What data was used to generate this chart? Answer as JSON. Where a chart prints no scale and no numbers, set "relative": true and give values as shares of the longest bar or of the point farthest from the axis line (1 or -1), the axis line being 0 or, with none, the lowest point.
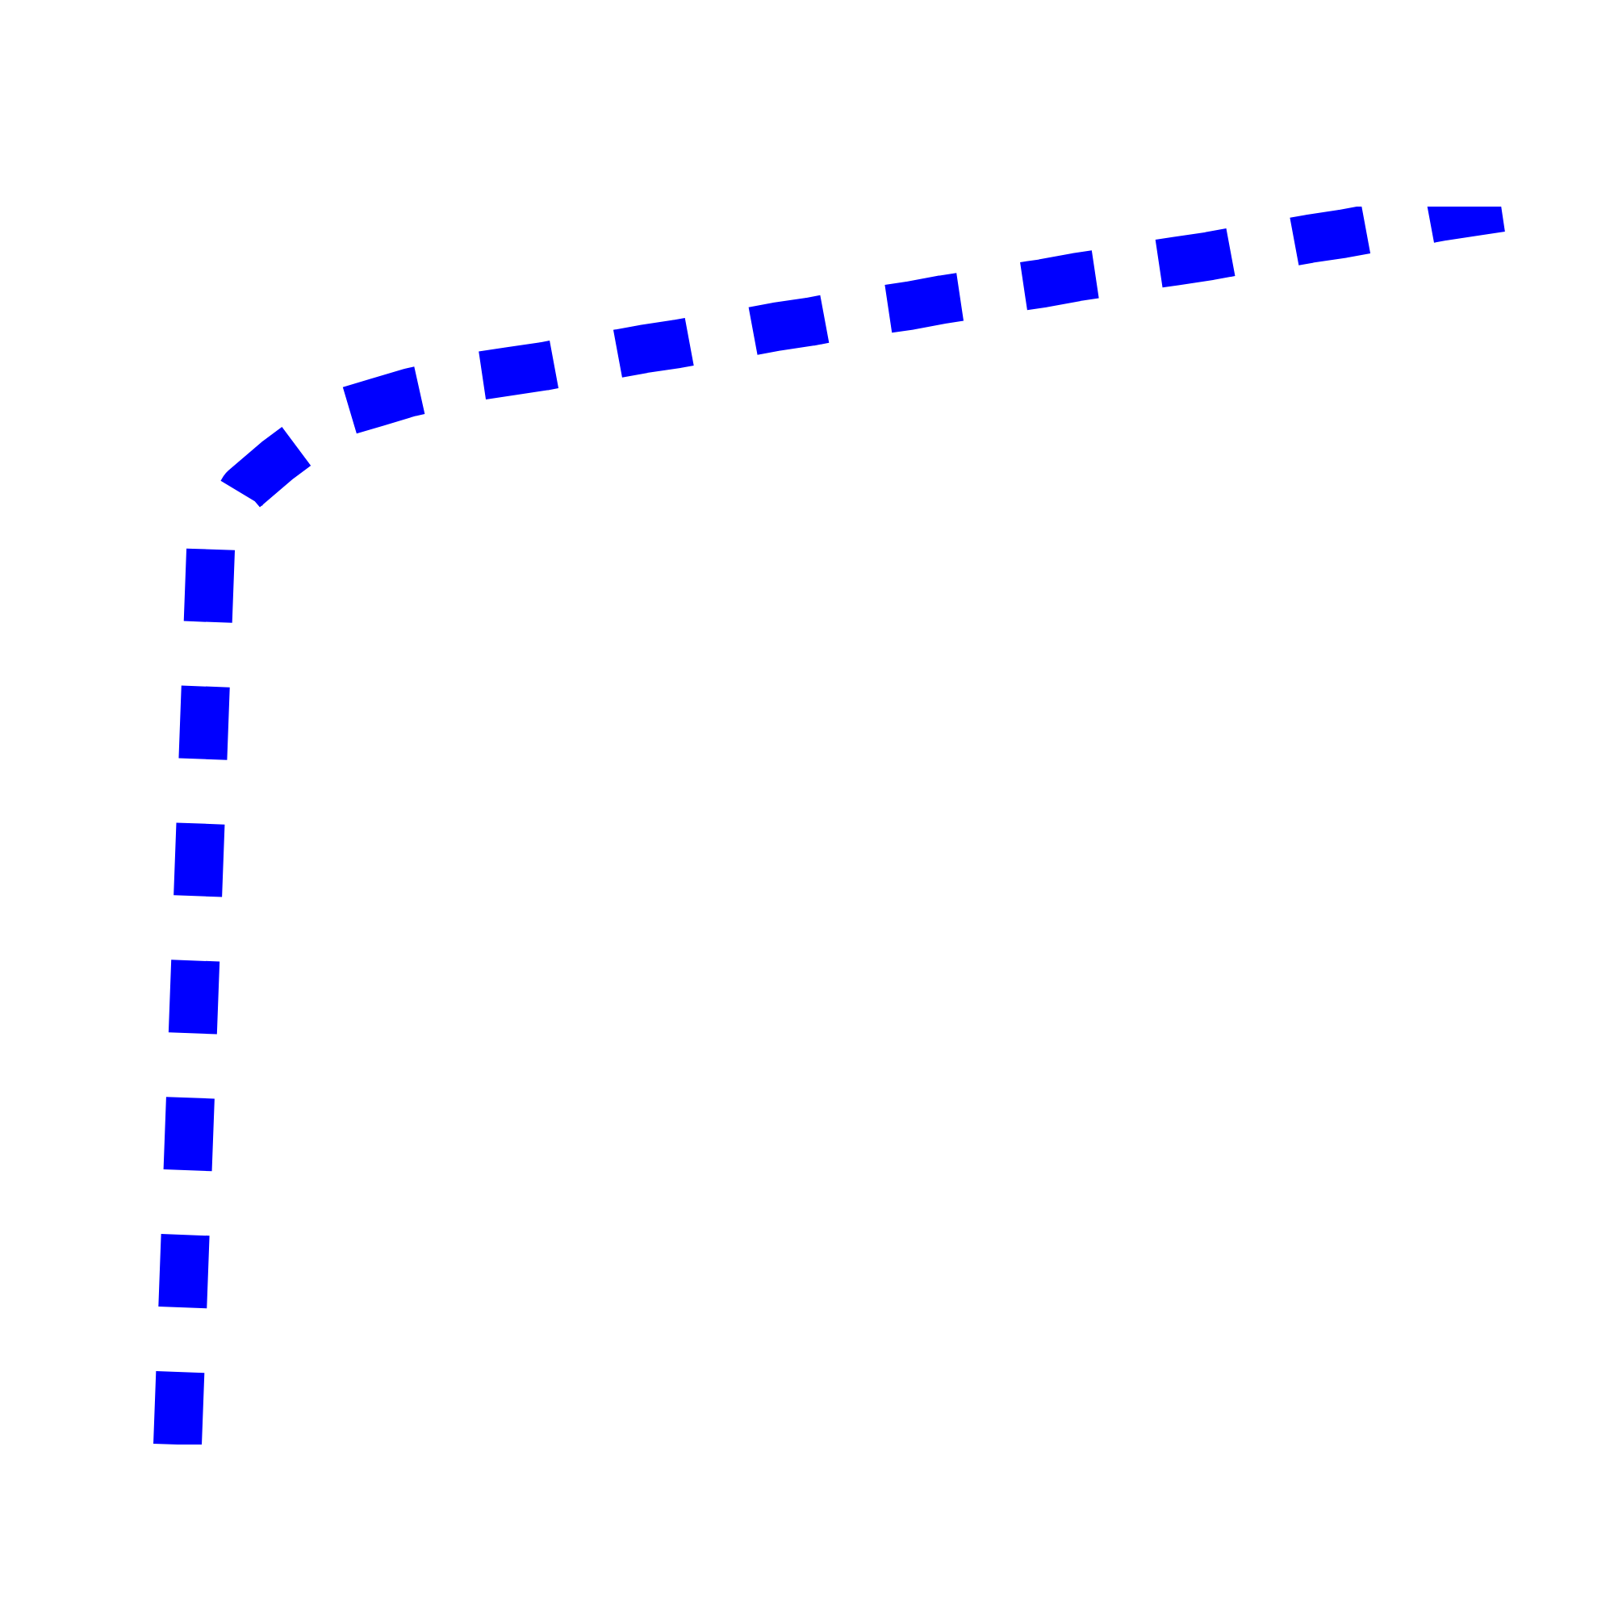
{
  "chart_data": {
    "type": "line",
    "relative": true,
    "line_style": "dashed",
    "categories": [
      null,
      null,
      null,
      null,
      null,
      null,
      null,
      null,
      null,
      null,
      null,
      null,
      null,
      null,
      null,
      null,
      null,
      null,
      null,
      null,
      null,
      null,
      null,
      null,
      null,
      null,
      null,
      null,
      null,
      null,
      null,
      null,
      null,
      null,
      null,
      null,
      null,
      null,
      null,
      null,
      null
    ],
    "series": [
      {
        "color": "#0000ff",
        "values": [
          0,
          0.727,
          0.772,
          0.795,
          0.815,
          0.834,
          0.842,
          0.85,
          0.856,
          0.863,
          0.867,
          0.871,
          0.876,
          0.88,
          0.885,
          0.889,
          0.894,
          0.898,
          0.903,
          0.907,
          0.912,
          0.916,
          0.92,
          0.925,
          0.929,
          0.934,
          0.938,
          0.943,
          0.947,
          0.952,
          0.956,
          0.96,
          0.965,
          0.969,
          0.974,
          0.978,
          0.983,
          0.987,
          0.992,
          0.996,
          1
        ]
      }
    ]
  }
}
